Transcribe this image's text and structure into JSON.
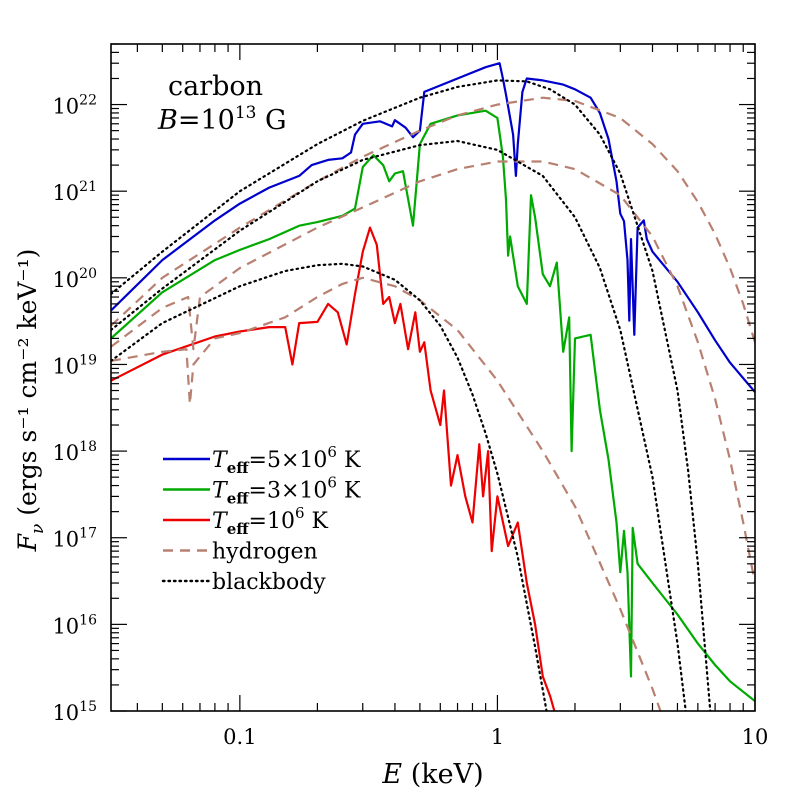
{
  "chart_data": {
    "type": "line",
    "xscale": "log",
    "yscale": "log",
    "xlim": [
      0.0316,
      10
    ],
    "ylim": [
      1000000000000000.0,
      5e+22
    ],
    "xlabel_italic": "E",
    "xlabel_rest": " (keV)",
    "ylabel_main": "F",
    "ylabel_sub": "ν",
    "ylabel_rest": " (ergs s⁻¹ cm⁻² keV⁻¹)",
    "x_ticks": [
      {
        "value": 0.1,
        "label": "0.1"
      },
      {
        "value": 1,
        "label": "1"
      },
      {
        "value": 10,
        "label": "10"
      }
    ],
    "y_ticks": [
      {
        "value": 1000000000000000.0,
        "exp": "15"
      },
      {
        "value": 1e+16,
        "exp": "16"
      },
      {
        "value": 1e+17,
        "exp": "17"
      },
      {
        "value": 1e+18,
        "exp": "18"
      },
      {
        "value": 1e+19,
        "exp": "19"
      },
      {
        "value": 1e+20,
        "exp": "20"
      },
      {
        "value": 1e+21,
        "exp": "21"
      },
      {
        "value": 1e+22,
        "exp": "22"
      }
    ],
    "y_tick_base": "10",
    "annotation": {
      "line1": "carbon",
      "b_symbol": "B",
      "b_eq": "=10",
      "b_exp": "13",
      "b_unit": " G"
    },
    "legend_position": "lower-left",
    "legend": [
      {
        "key": "teff5",
        "pre": "T",
        "sub": "eff",
        "mid": "=5×10",
        "sup": "6",
        "post": " K",
        "color": "#0000cc",
        "dash": "solid"
      },
      {
        "key": "teff3",
        "pre": "T",
        "sub": "eff",
        "mid": "=3×10",
        "sup": "6",
        "post": " K",
        "color": "#00aa00",
        "dash": "solid"
      },
      {
        "key": "teff1",
        "pre": "T",
        "sub": "eff",
        "mid": "=10",
        "sup": "6",
        "post": " K",
        "color": "#ee0000",
        "dash": "solid"
      },
      {
        "key": "hydrogen",
        "text": "hydrogen",
        "color": "#b88070",
        "dash": "dashed"
      },
      {
        "key": "blackbody",
        "text": "blackbody",
        "color": "#000000",
        "dash": "dotted"
      }
    ],
    "series": [
      {
        "key": "teff5",
        "group": "carbon",
        "color": "#0000cc",
        "dash": "solid",
        "points": [
          [
            0.0316,
            4.2e+19
          ],
          [
            0.05,
            1.6e+20
          ],
          [
            0.08,
            4.6e+20
          ],
          [
            0.1,
            7.2e+20
          ],
          [
            0.13,
            1.1e+21
          ],
          [
            0.17,
            1.5e+21
          ],
          [
            0.19,
            2e+21
          ],
          [
            0.22,
            2.3e+21
          ],
          [
            0.25,
            2.4e+21
          ],
          [
            0.27,
            2.8e+21
          ],
          [
            0.28,
            4.5e+21
          ],
          [
            0.3,
            6e+21
          ],
          [
            0.35,
            6.4e+21
          ],
          [
            0.39,
            5.6e+21
          ],
          [
            0.4,
            6.6e+21
          ],
          [
            0.44,
            5.4e+21
          ],
          [
            0.47,
            4.2e+21
          ],
          [
            0.5,
            5e+21
          ],
          [
            0.52,
            1.4e+22
          ],
          [
            0.7,
            2e+22
          ],
          [
            0.9,
            2.7e+22
          ],
          [
            1.02,
            3e+22
          ],
          [
            1.05,
            2e+22
          ],
          [
            1.08,
            1.3e+22
          ],
          [
            1.15,
            4.5e+21
          ],
          [
            1.18,
            1.5e+21
          ],
          [
            1.2,
            3.5e+21
          ],
          [
            1.25,
            1.4e+22
          ],
          [
            1.3,
            2e+22
          ],
          [
            1.5,
            1.9e+22
          ],
          [
            1.8,
            1.7e+22
          ],
          [
            2.0,
            1.5e+22
          ],
          [
            2.3,
            1.2e+22
          ],
          [
            2.5,
            8e+21
          ],
          [
            2.7,
            4e+21
          ],
          [
            2.9,
            1.3e+21
          ],
          [
            3.0,
            5.5e+20
          ],
          [
            3.1,
            4.5e+20
          ],
          [
            3.2,
            1.6e+20
          ],
          [
            3.25,
            3.2e+19
          ],
          [
            3.3,
            2.8e+20
          ],
          [
            3.4,
            2.2e+19
          ],
          [
            3.5,
            3.8e+20
          ],
          [
            3.7,
            4.6e+20
          ],
          [
            3.8,
            2.8e+20
          ],
          [
            4.0,
            2e+20
          ],
          [
            5.0,
            9e+19
          ],
          [
            6.0,
            4e+19
          ],
          [
            7.0,
            1.9e+19
          ],
          [
            8.0,
            1.05e+19
          ],
          [
            10.0,
            4.8e+18
          ]
        ]
      },
      {
        "key": "teff3",
        "group": "carbon",
        "color": "#00aa00",
        "dash": "solid",
        "points": [
          [
            0.0316,
            2e+19
          ],
          [
            0.05,
            6.8e+19
          ],
          [
            0.08,
            1.6e+20
          ],
          [
            0.1,
            2.1e+20
          ],
          [
            0.13,
            2.8e+20
          ],
          [
            0.17,
            4e+20
          ],
          [
            0.2,
            4.4e+20
          ],
          [
            0.25,
            5.2e+20
          ],
          [
            0.28,
            6.3e+20
          ],
          [
            0.3,
            1.9e+21
          ],
          [
            0.33,
            2.6e+21
          ],
          [
            0.36,
            2e+21
          ],
          [
            0.38,
            1.3e+21
          ],
          [
            0.4,
            1.6e+21
          ],
          [
            0.43,
            1.7e+21
          ],
          [
            0.47,
            4e+20
          ],
          [
            0.5,
            3.5e+21
          ],
          [
            0.55,
            6e+21
          ],
          [
            0.7,
            7.5e+21
          ],
          [
            0.9,
            8.5e+21
          ],
          [
            1.0,
            7e+21
          ],
          [
            1.05,
            2.5e+21
          ],
          [
            1.08,
            8e+20
          ],
          [
            1.1,
            1.8e+20
          ],
          [
            1.12,
            3e+20
          ],
          [
            1.2,
            8e+19
          ],
          [
            1.3,
            5e+19
          ],
          [
            1.35,
            9e+20
          ],
          [
            1.4,
            5e+20
          ],
          [
            1.5,
            1.1e+20
          ],
          [
            1.6,
            8e+19
          ],
          [
            1.7,
            1.5e+20
          ],
          [
            1.8,
            1.4e+19
          ],
          [
            1.9,
            3.5e+19
          ],
          [
            1.94,
            1e+18
          ],
          [
            2.0,
            2e+19
          ],
          [
            2.3,
            2.2e+19
          ],
          [
            2.5,
            3e+18
          ],
          [
            2.7,
            8e+17
          ],
          [
            2.9,
            1.5e+17
          ],
          [
            3.0,
            4e+16
          ],
          [
            3.1,
            1.2e+17
          ],
          [
            3.2,
            4e+16
          ],
          [
            3.3,
            2500000000000000.0
          ],
          [
            3.35,
            1.3e+17
          ],
          [
            3.5,
            5e+16
          ],
          [
            4.0,
            3e+16
          ],
          [
            5.0,
            1.3e+16
          ],
          [
            6.0,
            6000000000000000.0
          ],
          [
            7.0,
            3400000000000000.0
          ],
          [
            8.0,
            2200000000000000.0
          ],
          [
            10.0,
            1300000000000000.0
          ]
        ]
      },
      {
        "key": "teff1",
        "group": "carbon",
        "color": "#ee0000",
        "dash": "solid",
        "points": [
          [
            0.0316,
            6.5e+18
          ],
          [
            0.05,
            1.3e+19
          ],
          [
            0.08,
            2.1e+19
          ],
          [
            0.1,
            2.4e+19
          ],
          [
            0.13,
            2.7e+19
          ],
          [
            0.15,
            2.7e+19
          ],
          [
            0.16,
            1e+19
          ],
          [
            0.17,
            3e+19
          ],
          [
            0.2,
            3.1e+19
          ],
          [
            0.22,
            5e+19
          ],
          [
            0.24,
            4e+19
          ],
          [
            0.26,
            1.7e+19
          ],
          [
            0.28,
            6.5e+19
          ],
          [
            0.3,
            2e+20
          ],
          [
            0.32,
            3.8e+20
          ],
          [
            0.34,
            2.4e+20
          ],
          [
            0.36,
            5e+19
          ],
          [
            0.38,
            6e+19
          ],
          [
            0.4,
            3e+19
          ],
          [
            0.42,
            5e+19
          ],
          [
            0.45,
            1.5e+19
          ],
          [
            0.48,
            4e+19
          ],
          [
            0.5,
            1.4e+19
          ],
          [
            0.52,
            1.8e+19
          ],
          [
            0.55,
            5e+18
          ],
          [
            0.6,
            2e+18
          ],
          [
            0.62,
            5e+18
          ],
          [
            0.66,
            4e+17
          ],
          [
            0.7,
            9e+17
          ],
          [
            0.75,
            3e+17
          ],
          [
            0.8,
            1.5e+17
          ],
          [
            0.85,
            1.2e+18
          ],
          [
            0.88,
            3e+17
          ],
          [
            0.92,
            1e+18
          ],
          [
            0.95,
            7e+16
          ],
          [
            1.0,
            3e+17
          ],
          [
            1.1,
            8e+16
          ],
          [
            1.2,
            1.5e+17
          ],
          [
            1.3,
            3e+16
          ],
          [
            1.4,
            1e+16
          ],
          [
            1.5,
            2500000000000000.0
          ],
          [
            1.6,
            1500000000000000.0
          ],
          [
            1.7,
            800000000000000.0
          ]
        ]
      },
      {
        "key": "hydrogen5",
        "group": "hydrogen",
        "color": "#b88070",
        "dash": "dashed",
        "points": [
          [
            0.0316,
            2.8e+19
          ],
          [
            0.05,
            1e+20
          ],
          [
            0.1,
            3.8e+20
          ],
          [
            0.2,
            1.3e+21
          ],
          [
            0.3,
            2.5e+21
          ],
          [
            0.5,
            5e+21
          ],
          [
            0.7,
            7.5e+21
          ],
          [
            1.0,
            1e+22
          ],
          [
            1.5,
            1.2e+22
          ],
          [
            2.0,
            1.1e+22
          ],
          [
            3.0,
            7e+21
          ],
          [
            4.0,
            3.5e+21
          ],
          [
            5.0,
            1.7e+21
          ],
          [
            6.0,
            7.5e+20
          ],
          [
            7.0,
            3.2e+20
          ],
          [
            8.0,
            1.3e+20
          ],
          [
            9.0,
            5e+19
          ],
          [
            10.0,
            1.8e+19
          ]
        ]
      },
      {
        "key": "hydrogen3",
        "group": "hydrogen",
        "color": "#b88070",
        "dash": "dashed",
        "points": [
          [
            0.0316,
            1.6e+19
          ],
          [
            0.05,
            4.5e+19
          ],
          [
            0.063,
            6e+19
          ],
          [
            0.066,
            1.5e+19
          ],
          [
            0.07,
            6e+19
          ],
          [
            0.1,
            1.3e+20
          ],
          [
            0.2,
            3.8e+20
          ],
          [
            0.3,
            6.5e+20
          ],
          [
            0.5,
            1.3e+21
          ],
          [
            0.7,
            1.8e+21
          ],
          [
            1.0,
            2.2e+21
          ],
          [
            1.5,
            2.2e+21
          ],
          [
            2.0,
            1.8e+21
          ],
          [
            3.0,
            9e+20
          ],
          [
            4.0,
            3e+20
          ],
          [
            5.0,
            8e+19
          ],
          [
            6.0,
            1.8e+19
          ],
          [
            7.0,
            4e+18
          ],
          [
            8.0,
            8e+17
          ],
          [
            9.0,
            1.5e+17
          ],
          [
            10.0,
            3e+16
          ]
        ]
      },
      {
        "key": "hydrogen1",
        "group": "hydrogen",
        "color": "#b88070",
        "dash": "dashed",
        "points": [
          [
            0.0316,
            1.1e+19
          ],
          [
            0.05,
            1.4e+19
          ],
          [
            0.062,
            1.5e+19
          ],
          [
            0.064,
            3.5e+18
          ],
          [
            0.066,
            1e+19
          ],
          [
            0.08,
            2e+19
          ],
          [
            0.1,
            2.3e+19
          ],
          [
            0.15,
            3.5e+19
          ],
          [
            0.2,
            6e+19
          ],
          [
            0.25,
            8.5e+19
          ],
          [
            0.3,
            1e+20
          ],
          [
            0.4,
            8e+19
          ],
          [
            0.5,
            5.5e+19
          ],
          [
            0.7,
            2.5e+19
          ],
          [
            1.0,
            6.5e+18
          ],
          [
            1.5,
            1e+18
          ],
          [
            2.0,
            2.3e+17
          ],
          [
            3.0,
            1.5e+16
          ],
          [
            4.0,
            1800000000000000.0
          ],
          [
            4.8,
            400000000000000.0
          ]
        ]
      },
      {
        "key": "bb5",
        "group": "blackbody",
        "color": "#000000",
        "dash": "dotted",
        "points": [
          [
            0.0316,
            6.5e+19
          ],
          [
            0.05,
            2e+20
          ],
          [
            0.1,
            1e+21
          ],
          [
            0.2,
            3.5e+21
          ],
          [
            0.3,
            6.5e+21
          ],
          [
            0.5,
            1.2e+22
          ],
          [
            0.7,
            1.6e+22
          ],
          [
            1.0,
            1.9e+22
          ],
          [
            1.3,
            1.85e+22
          ],
          [
            1.6,
            1.5e+22
          ],
          [
            2.0,
            1e+22
          ],
          [
            2.5,
            4.5e+21
          ],
          [
            3.0,
            1.6e+21
          ],
          [
            4.0,
            1.2e+20
          ],
          [
            5.0,
            5e+18
          ],
          [
            5.5,
            6e+17
          ],
          [
            6.0,
            5e+16
          ],
          [
            6.5,
            3000000000000000.0
          ],
          [
            6.8,
            600000000000000.0
          ]
        ]
      },
      {
        "key": "bb3",
        "group": "blackbody",
        "color": "#000000",
        "dash": "dotted",
        "points": [
          [
            0.0316,
            2.5e+19
          ],
          [
            0.05,
            7.5e+19
          ],
          [
            0.1,
            3.5e+20
          ],
          [
            0.2,
            1.3e+21
          ],
          [
            0.3,
            2.3e+21
          ],
          [
            0.5,
            3.4e+21
          ],
          [
            0.7,
            3.8e+21
          ],
          [
            1.0,
            3e+21
          ],
          [
            1.5,
            1.5e+21
          ],
          [
            2.0,
            5e+20
          ],
          [
            2.5,
            1.3e+20
          ],
          [
            3.0,
            2.5e+19
          ],
          [
            4.0,
            5e+17
          ],
          [
            5.0,
            6000000000000000.0
          ],
          [
            5.5,
            600000000000000.0
          ]
        ]
      },
      {
        "key": "bb1",
        "group": "blackbody",
        "color": "#000000",
        "dash": "dotted",
        "points": [
          [
            0.0316,
            1.1e+19
          ],
          [
            0.05,
            3e+19
          ],
          [
            0.1,
            8e+19
          ],
          [
            0.15,
            1.2e+20
          ],
          [
            0.2,
            1.4e+20
          ],
          [
            0.25,
            1.45e+20
          ],
          [
            0.3,
            1.35e+20
          ],
          [
            0.4,
            9.5e+19
          ],
          [
            0.5,
            5.5e+19
          ],
          [
            0.6,
            2.8e+19
          ],
          [
            0.7,
            1.2e+19
          ],
          [
            0.8,
            4.5e+18
          ],
          [
            0.9,
            1.6e+18
          ],
          [
            1.0,
            5.5e+17
          ],
          [
            1.2,
            6e+16
          ],
          [
            1.4,
            5500000000000000.0
          ],
          [
            1.6,
            600000000000000.0
          ]
        ]
      }
    ]
  }
}
